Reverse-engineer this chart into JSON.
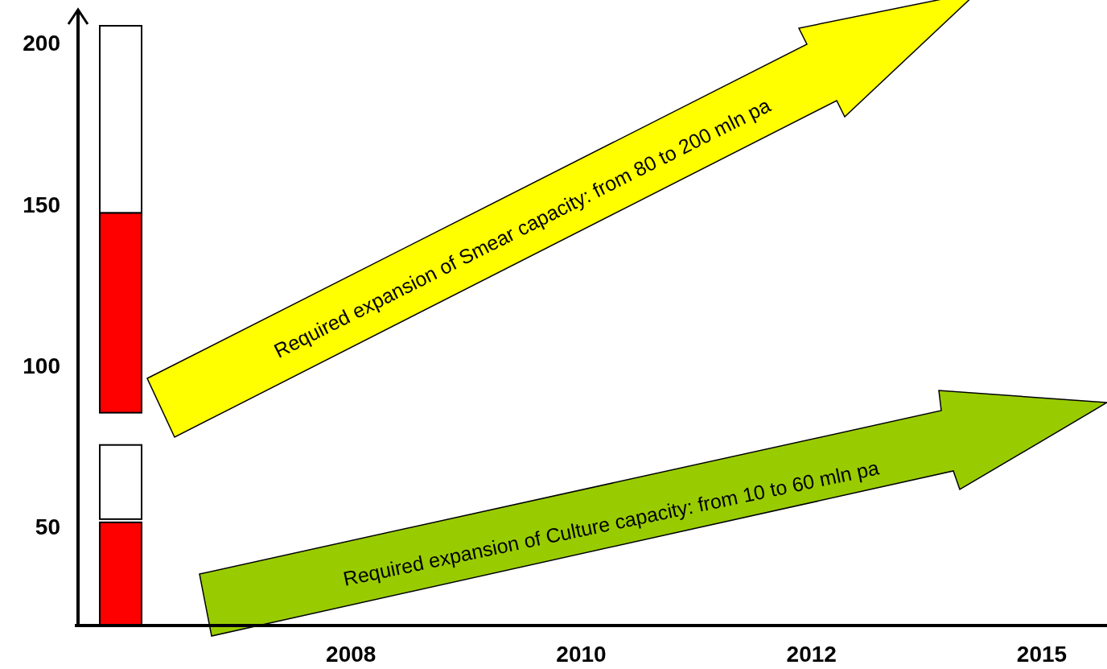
{
  "chart_data": {
    "type": "bar",
    "categories": [
      null,
      "2008",
      "2010",
      "2012",
      "2015"
    ],
    "ylim": [
      20,
      211
    ],
    "yticks": [
      50,
      100,
      150,
      200
    ],
    "grid": false,
    "series": [
      {
        "color": "#ff0000",
        "base": [
          20,
          null,
          null,
          null,
          null
        ],
        "values": [
          32,
          null,
          null,
          null,
          null
        ]
      },
      {
        "color": "#ffffff",
        "base": [
          53,
          null,
          null,
          null,
          null
        ],
        "values": [
          23,
          null,
          null,
          null,
          null
        ]
      },
      {
        "color": "#ff0000",
        "base": [
          86,
          null,
          null,
          null,
          null
        ],
        "values": [
          62,
          null,
          null,
          null,
          null
        ]
      },
      {
        "color": "#ffffff",
        "base": [
          148,
          null,
          null,
          null,
          null
        ],
        "values": [
          58,
          null,
          null,
          null,
          null
        ]
      }
    ],
    "annotations": [
      "Required expansion of Smear capacity: from 80 to 200 mln pa",
      "Required expansion of Culture capacity: from 10 to 60 mln pa"
    ]
  }
}
